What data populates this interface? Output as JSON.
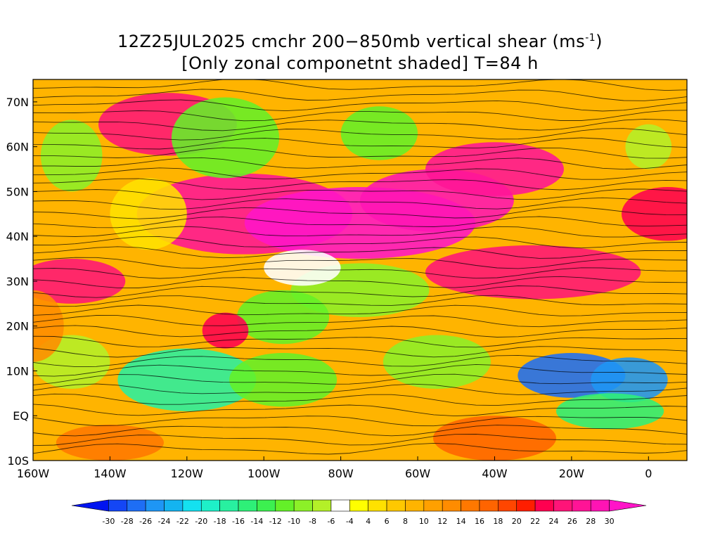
{
  "title": {
    "line1_prefix": "12Z25JUL2025 cmchr 200−850mb vertical shear (ms",
    "line1_sup": "-1",
    "line1_suffix": ")",
    "line2": "[Only zonal componetnt shaded] T=84 h"
  },
  "map": {
    "lon_range": [
      -160,
      10
    ],
    "lat_range": [
      -10,
      75
    ],
    "lon_ticks": [
      "160W",
      "140W",
      "120W",
      "100W",
      "80W",
      "60W",
      "40W",
      "20W",
      "0"
    ],
    "lat_ticks": [
      "70N",
      "60N",
      "50N",
      "40N",
      "30N",
      "20N",
      "10N",
      "EQ",
      "10S"
    ],
    "shading": "zonal component of 200-850mb vertical shear",
    "overlay": "shear streamlines"
  },
  "colorbar": {
    "labels": [
      "-30",
      "-28",
      "-26",
      "-24",
      "-22",
      "-20",
      "-18",
      "-16",
      "-14",
      "-12",
      "-10",
      "-8",
      "-6",
      "-4",
      "4",
      "6",
      "8",
      "10",
      "12",
      "14",
      "16",
      "18",
      "20",
      "22",
      "24",
      "26",
      "28",
      "30"
    ],
    "colors": [
      "#0014f0",
      "#1446f5",
      "#1e6ef5",
      "#1e96f5",
      "#14b4f0",
      "#14e1f0",
      "#1ef0c8",
      "#28f0a0",
      "#2ef078",
      "#3cf050",
      "#64f028",
      "#8cf028",
      "#b4f028",
      "#ffffff",
      "#ffff00",
      "#ffe100",
      "#ffc800",
      "#ffb400",
      "#ffa000",
      "#ff8c00",
      "#ff7800",
      "#ff6400",
      "#ff4600",
      "#ff1e00",
      "#ff0050",
      "#ff1478",
      "#ff1496",
      "#ff14b4",
      "#ff14c8"
    ]
  }
}
